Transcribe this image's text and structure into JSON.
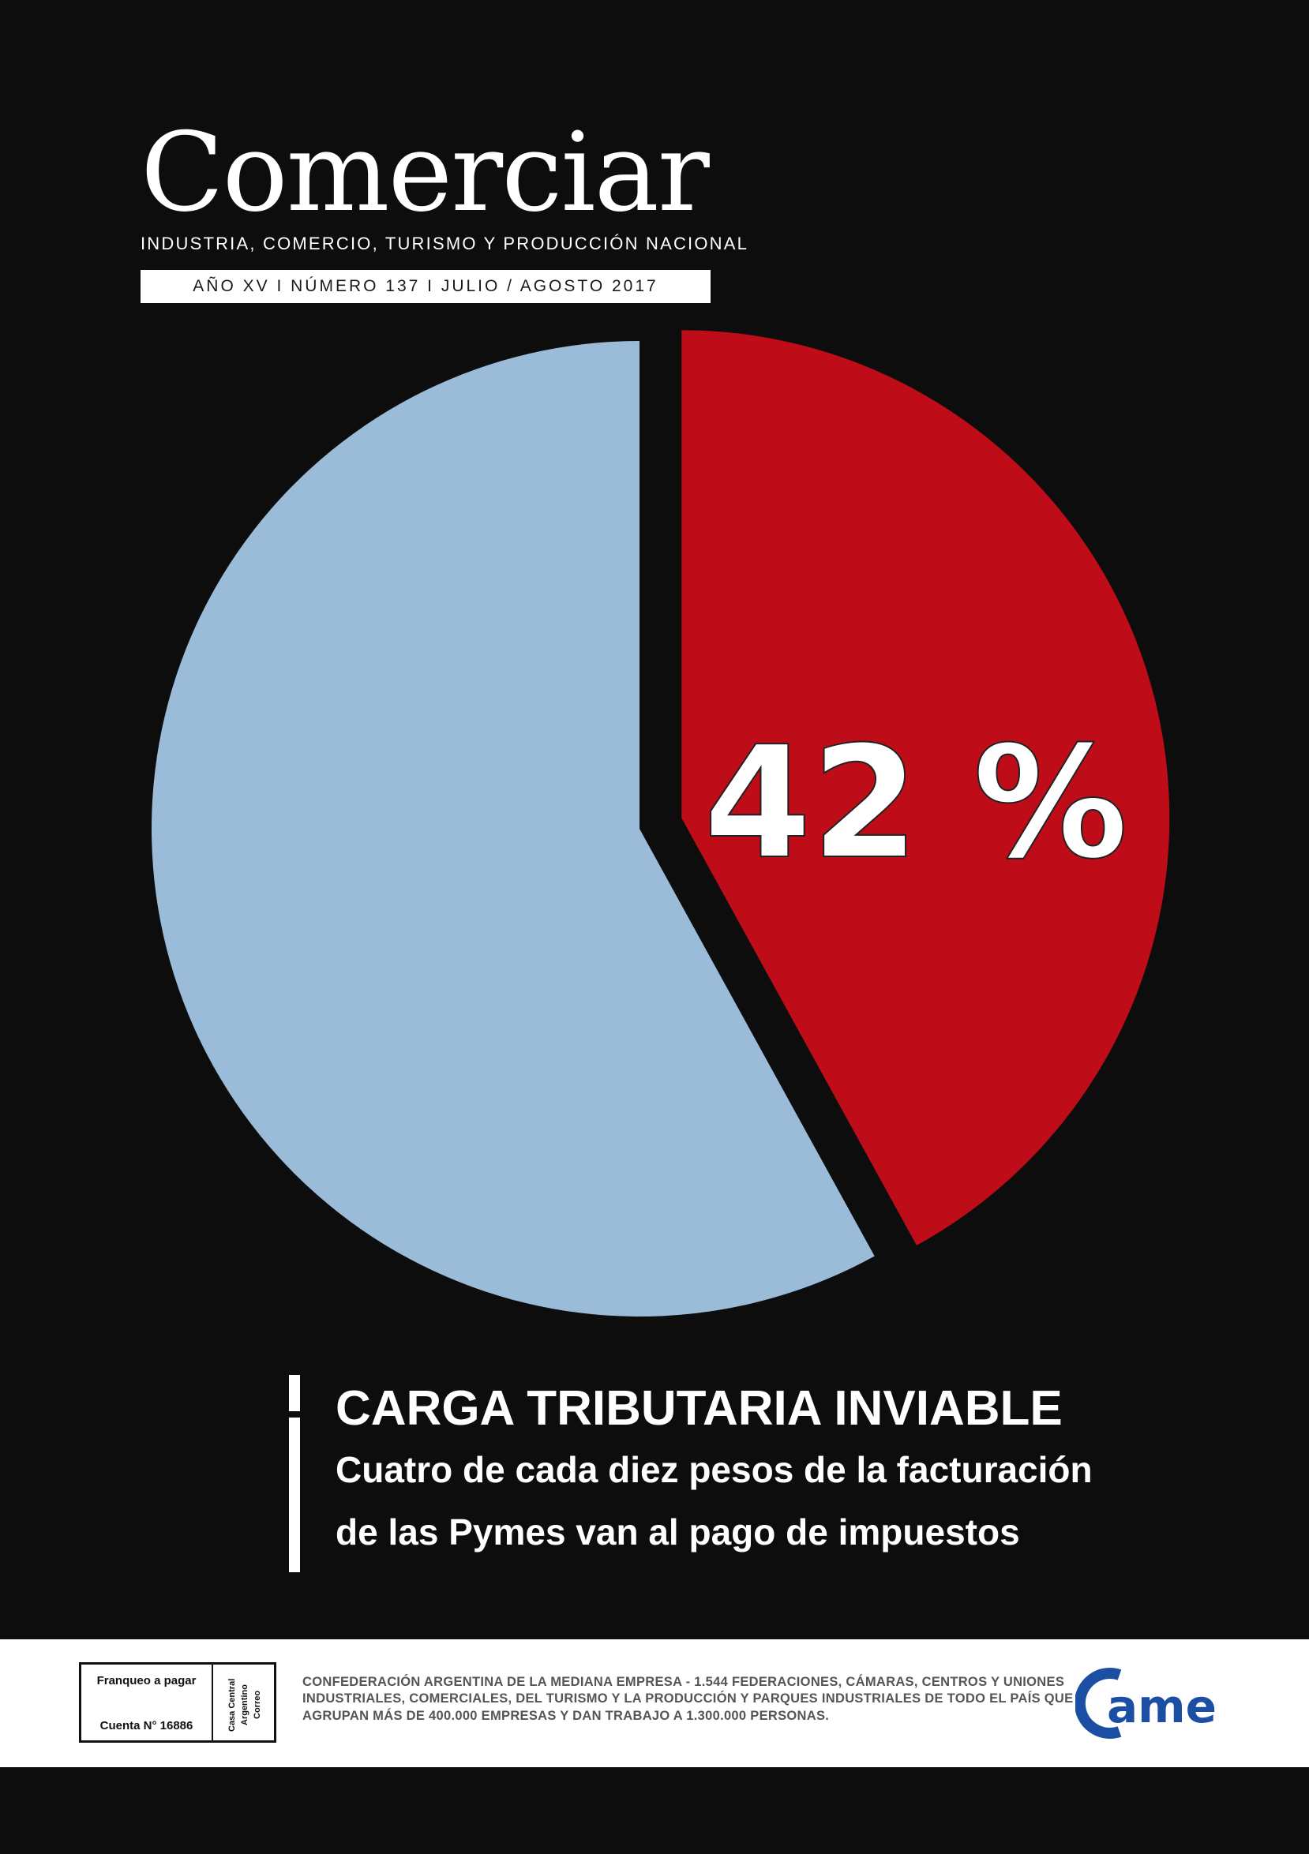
{
  "masthead": {
    "logo": "Comerciar",
    "tagline": "INDUSTRIA, COMERCIO, TURISMO Y PRODUCCIÓN NACIONAL",
    "issue": "AÑO XV I NÚMERO 137 I JULIO / AGOSTO 2017"
  },
  "chart_data": {
    "type": "pie",
    "slices": [
      {
        "value": 42,
        "color": "#be0d18",
        "exploded": true
      },
      {
        "value": 58,
        "color": "#9abcd9",
        "exploded": false
      }
    ],
    "data_labels": [
      "42 %"
    ],
    "start": "12 o'clock, clockwise",
    "legend": "none"
  },
  "headline": {
    "title": "CARGA TRIBUTARIA INVIABLE",
    "subtitle_line1": "Cuatro de cada diez pesos de la facturación",
    "subtitle_line2": "de las Pymes van al pago de impuestos"
  },
  "footer": {
    "postage_top": "Franqueo a pagar",
    "postage_bottom": "Cuenta N° 16886",
    "postage_side_line1": "Correo",
    "postage_side_line2": "Argentino",
    "postage_side_line3": "Casa Central",
    "text": "CONFEDERACIÓN ARGENTINA DE LA MEDIANA EMPRESA - 1.544  FEDERACIONES, CÁMARAS, CENTROS Y UNIONES INDUSTRIALES, COMERCIALES, DEL TURISMO Y LA PRODUCCIÓN Y PARQUES INDUSTRIALES DE TODO EL PAÍS QUE AGRUPAN MÁS DE 400.000 EMPRESAS Y DAN TRABAJO A 1.300.000 PERSONAS.",
    "logo_text": "came",
    "logo_color": "#1b4fa3"
  }
}
